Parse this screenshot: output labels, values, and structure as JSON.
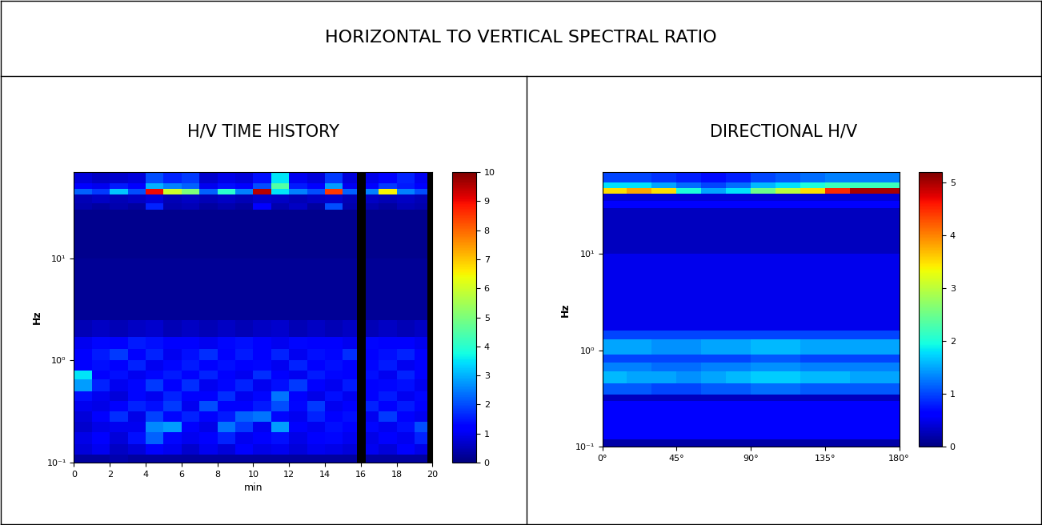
{
  "title": "HORIZONTAL TO VERTICAL SPECTRAL RATIO",
  "chart_data": [
    {
      "type": "heatmap",
      "title": "H/V TIME HISTORY",
      "xlabel": "min",
      "ylabel": "Hz",
      "log": "y",
      "xlim": [
        0,
        20
      ],
      "xticks": [
        0,
        2,
        4,
        6,
        8,
        10,
        12,
        14,
        16,
        18,
        20
      ],
      "ylim": [
        0.1,
        70
      ],
      "yticks": [
        {
          "value": 0.1,
          "label": "10⁻¹"
        },
        {
          "value": 1,
          "label": "10⁰"
        },
        {
          "value": 10,
          "label": "10¹"
        }
      ],
      "colorbar_range": [
        0,
        10
      ],
      "colorbar_ticks": [
        0,
        1,
        2,
        3,
        4,
        5,
        6,
        7,
        8,
        9,
        10
      ],
      "x_edges": [
        0,
        1,
        2,
        3,
        4,
        5,
        6,
        7,
        8,
        9,
        10,
        11,
        12,
        13,
        14,
        15,
        15.8,
        16.3,
        17,
        18,
        19,
        19.7,
        20
      ],
      "y_edges": [
        0.1,
        0.12,
        0.15,
        0.2,
        0.25,
        0.32,
        0.4,
        0.5,
        0.65,
        0.8,
        1.0,
        1.3,
        1.7,
        2.5,
        10,
        30,
        35,
        42,
        48,
        55,
        70
      ],
      "cells": [
        [
          0.3,
          0.3,
          0.4,
          0.3,
          0.3,
          0.3,
          0.3,
          0.3,
          0.3,
          0.3,
          0.3,
          0.3,
          0.3,
          0.3,
          0.3,
          0.3,
          null,
          0.3,
          0.3,
          0.3,
          0.3,
          null
        ],
        [
          0.8,
          1.0,
          0.6,
          0.8,
          1.2,
          1.0,
          0.7,
          1.0,
          0.8,
          1.1,
          0.9,
          1.0,
          0.8,
          1.0,
          0.9,
          0.8,
          null,
          1.0,
          0.8,
          1.1,
          0.9,
          null
        ],
        [
          0.9,
          1.2,
          0.8,
          1.4,
          2.2,
          1.3,
          1.0,
          1.2,
          1.6,
          1.0,
          1.2,
          1.4,
          0.9,
          1.1,
          1.3,
          1.0,
          null,
          0.9,
          1.2,
          1.0,
          1.6,
          null
        ],
        [
          0.7,
          0.9,
          1.0,
          1.0,
          2.6,
          2.8,
          1.2,
          0.9,
          2.4,
          1.8,
          1.0,
          2.8,
          1.2,
          1.0,
          1.4,
          1.1,
          null,
          1.3,
          1.0,
          1.4,
          2.0,
          null
        ],
        [
          0.8,
          1.2,
          1.7,
          0.9,
          1.9,
          1.3,
          1.6,
          1.1,
          1.5,
          2.2,
          2.4,
          1.3,
          1.0,
          1.6,
          1.1,
          1.4,
          null,
          1.0,
          1.8,
          1.2,
          1.0,
          null
        ],
        [
          1.0,
          0.9,
          1.2,
          1.6,
          1.4,
          1.8,
          1.0,
          2.0,
          1.2,
          1.1,
          1.5,
          2.0,
          1.3,
          1.8,
          1.0,
          1.2,
          null,
          1.6,
          1.1,
          1.5,
          1.2,
          null
        ],
        [
          1.4,
          1.0,
          0.8,
          1.3,
          1.0,
          1.6,
          1.2,
          1.1,
          1.7,
          1.0,
          1.3,
          2.4,
          1.1,
          0.9,
          1.4,
          1.0,
          null,
          1.2,
          1.5,
          1.0,
          1.3,
          null
        ],
        [
          2.8,
          1.6,
          1.0,
          1.3,
          1.8,
          1.2,
          1.7,
          1.0,
          1.3,
          1.6,
          1.0,
          1.4,
          1.8,
          1.2,
          1.0,
          1.5,
          null,
          1.1,
          1.3,
          1.4,
          1.0,
          null
        ],
        [
          3.5,
          1.2,
          1.4,
          1.0,
          1.3,
          1.5,
          1.1,
          1.6,
          1.2,
          1.0,
          1.7,
          1.2,
          1.0,
          1.5,
          1.3,
          1.2,
          null,
          1.4,
          1.0,
          1.6,
          1.1,
          null
        ],
        [
          1.2,
          1.4,
          1.1,
          1.6,
          1.0,
          1.3,
          1.5,
          1.2,
          1.4,
          1.1,
          1.3,
          1.0,
          1.6,
          1.2,
          1.4,
          1.1,
          null,
          1.3,
          1.5,
          1.0,
          1.2,
          null
        ],
        [
          1.1,
          1.5,
          1.8,
          1.2,
          1.6,
          1.0,
          1.4,
          1.7,
          1.1,
          1.5,
          1.2,
          1.6,
          1.0,
          1.4,
          1.3,
          1.7,
          null,
          1.2,
          1.4,
          1.6,
          1.1,
          null
        ],
        [
          1.0,
          1.3,
          1.2,
          1.5,
          1.4,
          1.1,
          1.2,
          1.0,
          1.3,
          1.4,
          1.2,
          1.0,
          1.3,
          1.1,
          1.2,
          1.0,
          null,
          1.3,
          1.1,
          1.2,
          1.0,
          null
        ],
        [
          0.5,
          0.6,
          0.5,
          0.6,
          0.7,
          0.5,
          0.6,
          0.5,
          0.6,
          0.5,
          0.6,
          0.7,
          0.5,
          0.6,
          0.5,
          0.6,
          null,
          0.5,
          0.6,
          0.5,
          0.6,
          null
        ],
        [
          0.2,
          0.2,
          0.2,
          0.2,
          0.2,
          0.2,
          0.2,
          0.2,
          0.2,
          0.2,
          0.2,
          0.2,
          0.2,
          0.2,
          0.2,
          0.2,
          null,
          0.2,
          0.2,
          0.2,
          0.2,
          null
        ],
        [
          0.15,
          0.15,
          0.15,
          0.15,
          0.15,
          0.15,
          0.15,
          0.15,
          0.15,
          0.15,
          0.15,
          0.15,
          0.15,
          0.15,
          0.15,
          0.15,
          null,
          0.15,
          0.15,
          0.15,
          0.15,
          null
        ],
        [
          0.4,
          0.3,
          0.4,
          0.3,
          1.6,
          0.4,
          0.5,
          0.3,
          0.4,
          0.3,
          1.2,
          0.4,
          0.6,
          0.3,
          2.0,
          0.4,
          null,
          0.4,
          0.3,
          0.5,
          0.4,
          null
        ],
        [
          0.5,
          0.6,
          0.5,
          0.6,
          0.8,
          0.5,
          0.6,
          0.5,
          0.6,
          0.5,
          0.7,
          0.6,
          0.5,
          0.6,
          0.7,
          0.5,
          null,
          0.6,
          0.5,
          0.6,
          0.5,
          null
        ],
        [
          2.2,
          1.8,
          3.2,
          2.0,
          9.0,
          6.0,
          5.0,
          2.2,
          4.0,
          2.5,
          9.5,
          3.5,
          2.5,
          2.0,
          8.5,
          2.2,
          null,
          2.5,
          6.5,
          2.5,
          2.0,
          null
        ],
        [
          1.2,
          1.0,
          1.5,
          1.2,
          3.0,
          2.5,
          2.2,
          1.0,
          1.4,
          1.2,
          2.0,
          4.5,
          1.5,
          1.2,
          2.8,
          1.0,
          null,
          1.2,
          1.8,
          1.5,
          1.2,
          null
        ],
        [
          0.8,
          0.6,
          0.7,
          0.8,
          2.0,
          1.6,
          1.8,
          0.7,
          0.9,
          0.8,
          1.4,
          3.5,
          1.0,
          0.8,
          1.8,
          0.8,
          null,
          0.9,
          1.2,
          1.6,
          1.0,
          null
        ]
      ]
    },
    {
      "type": "heatmap",
      "title": "DIRECTIONAL H/V",
      "ylabel": "Hz",
      "log": "y",
      "xlim": [
        0,
        180
      ],
      "xticks": [
        {
          "value": 0,
          "label": "0°"
        },
        {
          "value": 45,
          "label": "45°"
        },
        {
          "value": 90,
          "label": "90°"
        },
        {
          "value": 135,
          "label": "135°"
        },
        {
          "value": 180,
          "label": "180°"
        }
      ],
      "ylim": [
        0.1,
        70
      ],
      "yticks": [
        {
          "value": 0.1,
          "label": "10⁻¹"
        },
        {
          "value": 1,
          "label": "10⁰"
        },
        {
          "value": 10,
          "label": "10¹"
        }
      ],
      "colorbar_range": [
        0,
        5.2
      ],
      "colorbar_ticks": [
        0,
        1,
        2,
        3,
        4,
        5
      ],
      "x_edges": [
        0,
        15,
        30,
        45,
        60,
        75,
        90,
        105,
        120,
        135,
        150,
        165,
        180
      ],
      "y_edges": [
        0.1,
        0.12,
        0.3,
        0.35,
        0.45,
        0.6,
        0.75,
        0.9,
        1.3,
        1.6,
        10,
        30,
        35,
        42,
        48,
        55,
        70
      ],
      "cells": [
        [
          0.2,
          0.2,
          0.2,
          0.2,
          0.2,
          0.2,
          0.2,
          0.2,
          0.2,
          0.2,
          0.2,
          0.2
        ],
        [
          0.6,
          0.6,
          0.6,
          0.6,
          0.6,
          0.6,
          0.6,
          0.6,
          0.6,
          0.6,
          0.6,
          0.6
        ],
        [
          0.3,
          0.3,
          0.3,
          0.3,
          0.3,
          0.3,
          0.3,
          0.3,
          0.3,
          0.3,
          0.3,
          0.3
        ],
        [
          1.1,
          1.1,
          1.0,
          1.0,
          1.1,
          1.1,
          1.2,
          1.2,
          1.1,
          1.1,
          1.1,
          1.1
        ],
        [
          1.6,
          1.5,
          1.5,
          1.4,
          1.5,
          1.6,
          1.7,
          1.7,
          1.6,
          1.6,
          1.5,
          1.5
        ],
        [
          1.3,
          1.3,
          1.2,
          1.2,
          1.3,
          1.3,
          1.4,
          1.4,
          1.3,
          1.3,
          1.3,
          1.3
        ],
        [
          1.0,
          1.0,
          1.0,
          1.0,
          1.0,
          1.0,
          1.1,
          1.1,
          1.0,
          1.0,
          1.0,
          1.0
        ],
        [
          1.5,
          1.5,
          1.4,
          1.4,
          1.5,
          1.5,
          1.6,
          1.6,
          1.5,
          1.5,
          1.5,
          1.5
        ],
        [
          1.0,
          1.0,
          1.0,
          1.0,
          1.0,
          1.0,
          1.0,
          1.0,
          1.0,
          1.0,
          1.0,
          1.0
        ],
        [
          0.5,
          0.5,
          0.5,
          0.5,
          0.5,
          0.5,
          0.5,
          0.5,
          0.5,
          0.5,
          0.5,
          0.5
        ],
        [
          0.3,
          0.3,
          0.3,
          0.3,
          0.3,
          0.3,
          0.3,
          0.3,
          0.3,
          0.3,
          0.3,
          0.3
        ],
        [
          0.6,
          0.6,
          0.6,
          0.6,
          0.6,
          0.6,
          0.6,
          0.6,
          0.6,
          0.6,
          0.6,
          0.6
        ],
        [
          0.4,
          0.4,
          0.4,
          0.4,
          0.4,
          0.4,
          0.4,
          0.4,
          0.4,
          0.4,
          0.4,
          0.4
        ],
        [
          3.5,
          3.8,
          3.5,
          2.0,
          1.5,
          1.8,
          2.5,
          3.0,
          3.5,
          4.5,
          5.0,
          5.0
        ],
        [
          1.8,
          1.8,
          1.5,
          1.2,
          1.0,
          1.2,
          1.6,
          1.8,
          2.0,
          2.2,
          2.2,
          2.2
        ],
        [
          1.0,
          1.0,
          0.9,
          0.8,
          0.7,
          0.8,
          1.0,
          1.1,
          1.2,
          1.3,
          1.3,
          1.3
        ]
      ]
    }
  ]
}
